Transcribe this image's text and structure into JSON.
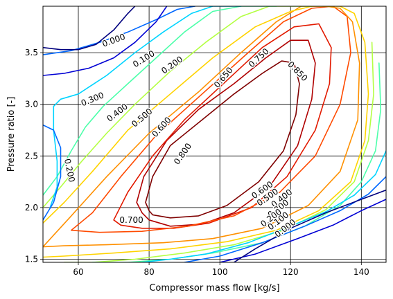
{
  "chart_data": {
    "type": "contour",
    "title": "",
    "xlabel": "Compressor mass flow [kg/s]",
    "ylabel": "Pressure ratio [-]",
    "xlim": [
      50,
      147
    ],
    "ylim": [
      1.47,
      3.95
    ],
    "xticks": [
      60,
      80,
      100,
      120,
      140
    ],
    "xtick_labels": [
      "60",
      "80",
      "100",
      "120",
      "140"
    ],
    "yticks": [
      1.5,
      2.0,
      2.5,
      3.0,
      3.5
    ],
    "ytick_labels": [
      "1.5",
      "2.0",
      "2.5",
      "3.0",
      "3.5"
    ],
    "grid": true,
    "colormap": "jet",
    "levels": [
      {
        "value": 0.0,
        "label": "0.000",
        "color": "#00007f"
      },
      {
        "value": 0.1,
        "label": "0.100",
        "color": "#0000d4"
      },
      {
        "value": 0.2,
        "label": "0.200",
        "color": "#0068ff"
      },
      {
        "value": 0.3,
        "label": "0.300",
        "color": "#00d4ff"
      },
      {
        "value": 0.4,
        "label": "0.400",
        "color": "#4cffaa"
      },
      {
        "value": 0.5,
        "label": "0.500",
        "color": "#b4ff43"
      },
      {
        "value": 0.6,
        "label": "0.600",
        "color": "#ffd300"
      },
      {
        "value": 0.65,
        "label": "0.650",
        "color": "#ff9000"
      },
      {
        "value": 0.7,
        "label": "0.700",
        "color": "#ff4a00"
      },
      {
        "value": 0.75,
        "label": "0.750",
        "color": "#e21a00"
      },
      {
        "value": 0.8,
        "label": "0.800",
        "color": "#b00000"
      },
      {
        "value": 0.85,
        "label": "0.850",
        "color": "#7f0000"
      }
    ],
    "contours": [
      {
        "level": 0.85,
        "x": [
          80,
          79,
          81,
          86,
          95,
          104,
          112,
          117.5,
          121,
          122.5,
          121.5,
          118,
          111,
          102,
          94,
          86,
          81,
          80
        ],
        "y": [
          1.97,
          2.05,
          2.3,
          2.6,
          2.85,
          3.1,
          3.3,
          3.42,
          3.4,
          3.2,
          2.9,
          2.55,
          2.25,
          2.02,
          1.92,
          1.9,
          1.93,
          1.97
        ]
      },
      {
        "level": 0.8,
        "x": [
          78,
          76.5,
          78.5,
          85,
          94,
          104,
          113,
          120,
          125,
          127,
          126,
          122,
          114,
          104,
          95,
          86,
          80,
          78
        ],
        "y": [
          1.95,
          2.05,
          2.3,
          2.65,
          2.95,
          3.2,
          3.45,
          3.62,
          3.62,
          3.4,
          3.05,
          2.6,
          2.2,
          1.95,
          1.84,
          1.82,
          1.88,
          1.95
        ]
      },
      {
        "level": 0.75,
        "x": [
          70,
          74,
          81,
          90,
          101,
          112,
          121,
          128,
          131.5,
          131,
          127,
          119,
          109,
          97,
          87,
          78,
          72,
          70
        ],
        "y": [
          1.88,
          2.15,
          2.5,
          2.85,
          3.2,
          3.55,
          3.75,
          3.78,
          3.55,
          3.2,
          2.75,
          2.3,
          2.0,
          1.85,
          1.8,
          1.8,
          1.83,
          1.88
        ]
      },
      {
        "level": 0.7,
        "x": [
          58,
          64,
          72,
          82,
          95,
          108,
          118,
          126,
          132,
          136,
          137,
          134,
          127,
          117,
          104,
          91,
          78,
          66,
          58
        ],
        "y": [
          1.78,
          1.95,
          2.3,
          2.7,
          3.1,
          3.5,
          3.8,
          3.93,
          3.95,
          3.85,
          3.5,
          3.0,
          2.5,
          2.15,
          1.92,
          1.82,
          1.77,
          1.76,
          1.78
        ]
      },
      {
        "level": 0.65,
        "x": [
          50,
          58,
          68,
          80,
          94,
          106,
          116,
          123,
          127,
          130,
          134,
          137.5,
          139.5,
          139,
          134,
          125,
          112,
          98,
          84,
          68,
          56,
          50
        ],
        "y": [
          1.62,
          1.92,
          2.3,
          2.72,
          3.12,
          3.5,
          3.8,
          3.95,
          3.95,
          3.95,
          3.93,
          3.8,
          3.4,
          2.85,
          2.35,
          2.02,
          1.8,
          1.7,
          1.66,
          1.64,
          1.63,
          1.62
        ]
      },
      {
        "level": 0.6,
        "x": [
          50,
          56,
          64,
          74,
          86,
          98,
          110,
          120,
          126,
          130,
          134,
          138,
          141,
          142,
          141,
          137,
          128,
          116,
          102,
          86,
          70,
          56,
          50
        ],
        "y": [
          1.85,
          2.05,
          2.35,
          2.75,
          3.1,
          3.45,
          3.75,
          3.9,
          3.95,
          3.95,
          3.95,
          3.88,
          3.6,
          3.1,
          2.65,
          2.25,
          1.97,
          1.78,
          1.67,
          1.6,
          1.56,
          1.53,
          1.52
        ]
      },
      {
        "level": 0.5,
        "x": [
          50,
          55,
          61,
          68,
          76,
          86,
          96,
          106,
          114,
          119,
          123,
          126
        ],
        "y": [
          2.0,
          2.2,
          2.45,
          2.72,
          3.0,
          3.32,
          3.6,
          3.85,
          3.95,
          3.95,
          3.95,
          3.95
        ]
      },
      {
        "level": 0.5,
        "x": [
          143,
          143.5,
          142,
          138,
          130,
          118,
          104,
          90,
          76,
          64,
          56
        ],
        "y": [
          3.6,
          3.1,
          2.65,
          2.25,
          1.98,
          1.78,
          1.64,
          1.56,
          1.5,
          1.47,
          1.47
        ]
      },
      {
        "level": 0.4,
        "x": [
          50,
          54,
          58,
          62,
          67,
          74,
          82,
          90,
          98,
          106,
          112,
          116
        ],
        "y": [
          2.12,
          2.3,
          2.55,
          2.78,
          2.98,
          3.2,
          3.45,
          3.7,
          3.9,
          3.95,
          3.95,
          3.95
        ]
      },
      {
        "level": 0.4,
        "x": [
          145,
          145.5,
          144,
          140,
          134,
          124,
          112,
          98,
          86,
          74,
          64
        ],
        "y": [
          3.4,
          2.95,
          2.55,
          2.25,
          2.02,
          1.82,
          1.66,
          1.56,
          1.5,
          1.47,
          1.47
        ]
      },
      {
        "level": 0.3,
        "x": [
          52,
          54,
          54,
          53,
          53,
          55,
          60,
          68,
          76,
          84,
          92,
          98,
          103,
          106
        ],
        "y": [
          2.0,
          2.2,
          2.45,
          2.75,
          2.98,
          3.05,
          3.1,
          3.28,
          3.5,
          3.7,
          3.88,
          3.95,
          3.95,
          3.95
        ]
      },
      {
        "level": 0.3,
        "x": [
          147,
          144,
          138,
          130,
          120,
          108,
          96,
          86,
          78
        ],
        "y": [
          2.55,
          2.32,
          2.12,
          1.96,
          1.82,
          1.66,
          1.55,
          1.5,
          1.47
        ]
      },
      {
        "level": 0.2,
        "x": [
          50,
          53,
          55,
          55,
          53,
          50
        ],
        "y": [
          1.88,
          2.05,
          2.3,
          2.58,
          2.75,
          2.8
        ]
      },
      {
        "level": 0.2,
        "x": [
          50,
          58,
          66,
          74,
          82,
          88,
          93
        ],
        "y": [
          3.48,
          3.52,
          3.6,
          3.7,
          3.82,
          3.92,
          3.95
        ]
      },
      {
        "level": 0.2,
        "x": [
          147,
          142,
          134,
          124,
          112,
          100,
          90
        ],
        "y": [
          2.3,
          2.13,
          1.97,
          1.82,
          1.66,
          1.53,
          1.47
        ]
      },
      {
        "level": 0.1,
        "x": [
          50,
          56,
          63,
          70,
          76,
          82,
          85
        ],
        "y": [
          3.28,
          3.3,
          3.35,
          3.45,
          3.6,
          3.8,
          3.95
        ]
      },
      {
        "level": 0.1,
        "x": [
          147,
          140,
          132,
          122,
          110,
          100
        ],
        "y": [
          2.08,
          1.97,
          1.83,
          1.7,
          1.55,
          1.47
        ]
      },
      {
        "level": 0.0,
        "x": [
          50,
          55,
          60,
          65,
          70,
          74,
          76
        ],
        "y": [
          3.55,
          3.53,
          3.53,
          3.58,
          3.72,
          3.88,
          3.95
        ]
      },
      {
        "level": 0.0,
        "x": [
          147,
          140,
          130,
          120,
          110,
          104
        ],
        "y": [
          2.17,
          2.08,
          1.95,
          1.8,
          1.6,
          1.47
        ]
      }
    ],
    "inline_labels": [
      {
        "text": "0.000",
        "x": 70,
        "y": 3.62,
        "rotate": -20
      },
      {
        "text": "0.100",
        "x": 78.5,
        "y": 3.44,
        "rotate": -32
      },
      {
        "text": "0.200",
        "x": 86.5,
        "y": 3.38,
        "rotate": -35
      },
      {
        "text": "0.300",
        "x": 64,
        "y": 3.05,
        "rotate": -22
      },
      {
        "text": "0.400",
        "x": 71,
        "y": 2.92,
        "rotate": -38
      },
      {
        "text": "0.500",
        "x": 78,
        "y": 2.87,
        "rotate": -40
      },
      {
        "text": "0.600",
        "x": 83.5,
        "y": 2.78,
        "rotate": -48
      },
      {
        "text": "0.650",
        "x": 101,
        "y": 3.26,
        "rotate": -50
      },
      {
        "text": "0.750",
        "x": 111,
        "y": 3.45,
        "rotate": -42
      },
      {
        "text": "0.850",
        "x": 122,
        "y": 3.32,
        "rotate": 45
      },
      {
        "text": "0.800",
        "x": 89.5,
        "y": 2.52,
        "rotate": -55
      },
      {
        "text": "0.700",
        "x": 75,
        "y": 1.88,
        "rotate": 0
      },
      {
        "text": "0.200",
        "x": 57.5,
        "y": 2.36,
        "rotate": 78
      },
      {
        "text": "0.600",
        "x": 112,
        "y": 2.17,
        "rotate": -35
      },
      {
        "text": "0.500",
        "x": 113.5,
        "y": 2.1,
        "rotate": -35
      },
      {
        "text": "0.400",
        "x": 117.5,
        "y": 2.09,
        "rotate": -38
      },
      {
        "text": "0.300",
        "x": 116.5,
        "y": 1.99,
        "rotate": -38
      },
      {
        "text": "0.200",
        "x": 114.5,
        "y": 1.9,
        "rotate": -38
      },
      {
        "text": "0.100",
        "x": 116.5,
        "y": 1.87,
        "rotate": -38
      },
      {
        "text": "0.000",
        "x": 118.5,
        "y": 1.8,
        "rotate": -38
      }
    ]
  }
}
